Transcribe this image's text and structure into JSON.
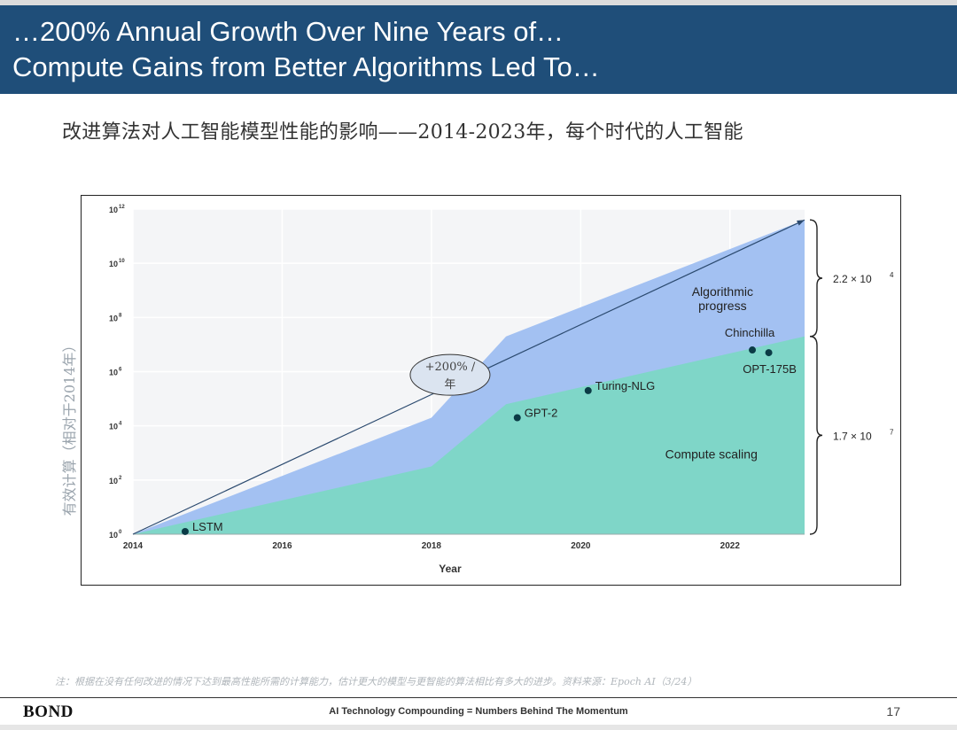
{
  "header": {
    "title_line1": "…200% Annual Growth Over Nine Years of…",
    "title_line2": "Compute Gains from Better Algorithms Led To…"
  },
  "subtitle": "改进算法对人工智能模型性能的影响——2014-2023年，每个时代的人工智能",
  "y_axis_label": "有效计算（相对于2014年）",
  "chart_data": {
    "type": "area",
    "xlabel": "Year",
    "ylabel": "有效计算（相对于2014年）",
    "x_range": [
      2014,
      2023
    ],
    "xticks": [
      2014,
      2016,
      2018,
      2020,
      2022
    ],
    "y_scale": "log10",
    "y_exp_range": [
      0,
      12
    ],
    "yticks": [
      {
        "base": "10",
        "exp": "0"
      },
      {
        "base": "10",
        "exp": "2"
      },
      {
        "base": "10",
        "exp": "4"
      },
      {
        "base": "10",
        "exp": "6"
      },
      {
        "base": "10",
        "exp": "8"
      },
      {
        "base": "10",
        "exp": "10"
      },
      {
        "base": "10",
        "exp": "12"
      }
    ],
    "series": [
      {
        "name": "Compute scaling",
        "color": "#7fd6c8",
        "points": [
          [
            2014,
            0
          ],
          [
            2018,
            2.5
          ],
          [
            2019,
            4.8
          ],
          [
            2023,
            7.3
          ]
        ]
      },
      {
        "name": "Algorithmic progress",
        "color": "#a3c1f2",
        "points": [
          [
            2014,
            0
          ],
          [
            2018,
            4.3
          ],
          [
            2019,
            7.3
          ],
          [
            2023,
            11.6
          ]
        ]
      }
    ],
    "trend_line": {
      "from": [
        2014,
        0
      ],
      "to": [
        2023,
        11.6
      ],
      "label_line1": "+200% /",
      "label_line2": "年"
    },
    "models": [
      {
        "name": "LSTM",
        "x": 2014.7,
        "y": 0.1
      },
      {
        "name": "GPT-2",
        "x": 2019.15,
        "y": 4.3
      },
      {
        "name": "Turing-NLG",
        "x": 2020.1,
        "y": 5.3
      },
      {
        "name": "Chinchilla",
        "x": 2022.3,
        "y": 6.8
      },
      {
        "name": "OPT-175B",
        "x": 2022.52,
        "y": 6.7
      }
    ],
    "area_labels": [
      {
        "line1": "Algorithmic",
        "line2": "progress",
        "x": 2021.9,
        "y": 8.8
      },
      {
        "line1": "Compute scaling",
        "line2": "",
        "x": 2021.75,
        "y": 2.8
      }
    ],
    "braces": [
      {
        "label_base": "2.2 × 10",
        "label_exp": "4",
        "from": 7.3,
        "to": 11.6
      },
      {
        "label_base": "1.7 × 10",
        "label_exp": "7",
        "from": 0,
        "to": 7.3
      }
    ],
    "colors": {
      "compute": "#7fd6c8",
      "algorithmic": "#a3c1f2",
      "trend": "#2b4a6f",
      "dot": "#0b3b46"
    }
  },
  "footnote": "注：根据在没有任何改进的情况下达到最高性能所需的计算能力，估计更大的模型与更智能的算法相比有多大的进步。资料来源：Epoch AI（3/24）",
  "footer": {
    "logo": "BOND",
    "center": "AI Technology Compounding = Numbers Behind The Momentum",
    "page": "17"
  }
}
